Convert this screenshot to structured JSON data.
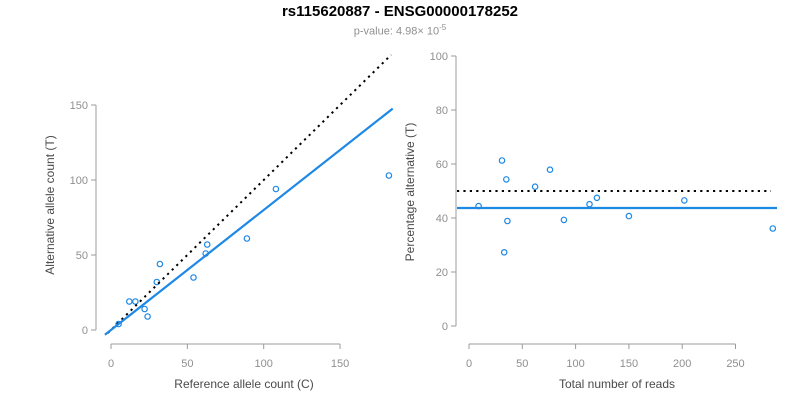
{
  "header": {
    "title": "rs115620887 - ENSG00000178252",
    "subtitle_main": "p-value: 4.98× 10",
    "subtitle_exponent": "-5"
  },
  "colors": {
    "accent_blue": "#1E88E5",
    "line_black": "#000000",
    "axis_gray": "#9b9b9b",
    "tick_label_gray": "#8f8f8f",
    "axis_title_gray": "#4a4a4a",
    "subtitle_gray": "#8f8f8f",
    "title_black": "#000000"
  },
  "chart_data": [
    {
      "type": "scatter",
      "name": "allele-counts",
      "xlabel": "Reference allele count (C)",
      "ylabel": "Alternative allele count (T)",
      "xticks": [
        0,
        50,
        100,
        150
      ],
      "yticks": [
        0,
        50,
        100,
        150
      ],
      "xlim": [
        0,
        186
      ],
      "ylim": [
        0,
        156
      ],
      "grid": "off",
      "points": [
        [
          5,
          4
        ],
        [
          12,
          19
        ],
        [
          16,
          19
        ],
        [
          22,
          14
        ],
        [
          24,
          9
        ],
        [
          30,
          32
        ],
        [
          32,
          44
        ],
        [
          54,
          35
        ],
        [
          62,
          51
        ],
        [
          63,
          57
        ],
        [
          89,
          61
        ],
        [
          108,
          94
        ],
        [
          182,
          103
        ]
      ],
      "lines": [
        {
          "name": "identity-line",
          "slope": 1,
          "intercept": 0,
          "style": "dotted",
          "color": "black"
        },
        {
          "name": "fit-line",
          "slope": 0.8,
          "intercept": 0,
          "style": "solid",
          "color": "blue"
        }
      ]
    },
    {
      "type": "scatter",
      "name": "percentage-vs-total",
      "xlabel": "Total number of reads",
      "ylabel": "Percentage alternative (T)",
      "xticks": [
        0,
        50,
        100,
        150,
        200,
        250
      ],
      "yticks": [
        0,
        20,
        40,
        60,
        80,
        100
      ],
      "xlim": [
        0,
        292
      ],
      "ylim": [
        0,
        100
      ],
      "grid": "off",
      "points": [
        [
          9,
          44.4
        ],
        [
          31,
          61.3
        ],
        [
          35,
          54.3
        ],
        [
          36,
          38.9
        ],
        [
          33,
          27.3
        ],
        [
          62,
          51.6
        ],
        [
          76,
          57.9
        ],
        [
          89,
          39.3
        ],
        [
          113,
          45.1
        ],
        [
          120,
          47.5
        ],
        [
          150,
          40.7
        ],
        [
          202,
          46.5
        ],
        [
          285,
          36.1
        ]
      ],
      "hlines": [
        {
          "name": "expected-50-line",
          "y": 50,
          "style": "dotted",
          "color": "black"
        },
        {
          "name": "mean-line",
          "y": 43.7,
          "style": "solid",
          "color": "blue"
        }
      ]
    }
  ]
}
